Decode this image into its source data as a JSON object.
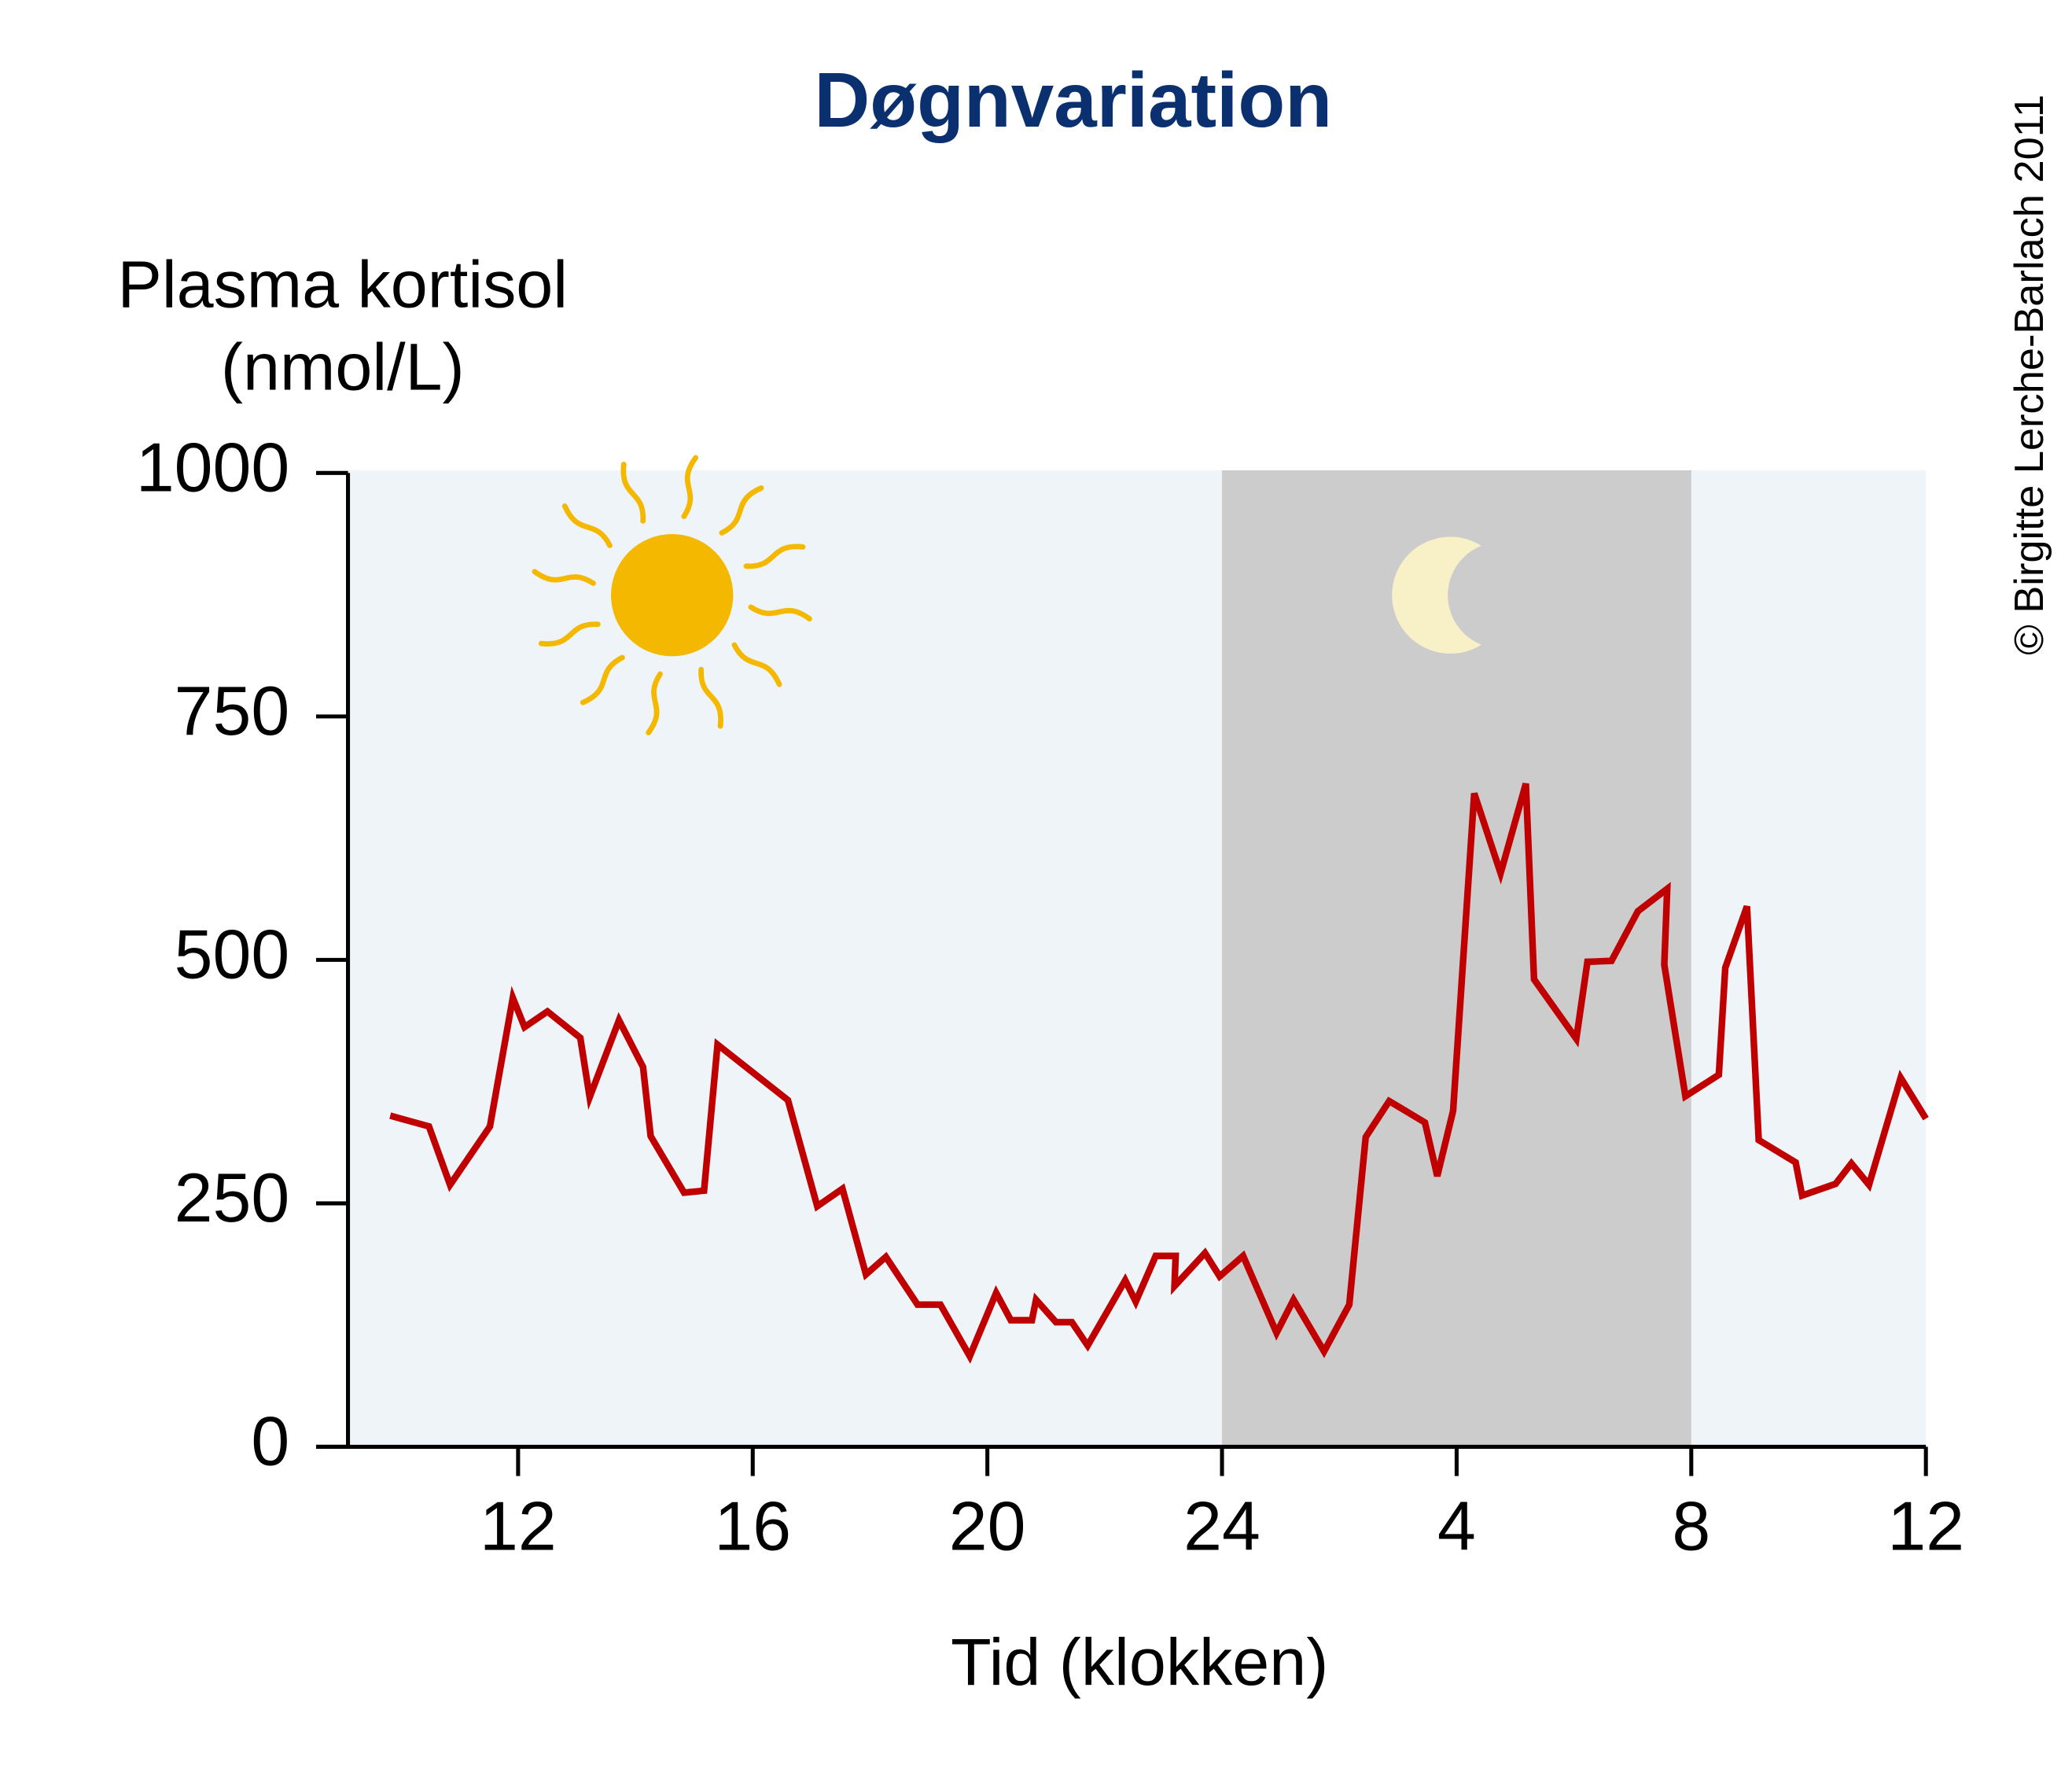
{
  "chart_data": {
    "type": "line",
    "title": "Døgnvariation",
    "ylabel": [
      "Plasma kortisol",
      "(nmol/L)"
    ],
    "xlabel": "Tid (klokken)",
    "copyright": "© Birgitte Lerche-Barlach 2011",
    "xlim": [
      9.1,
      36
    ],
    "ylim": [
      0,
      1000
    ],
    "xticks": [
      12,
      16,
      20,
      24,
      {
        "value": 28,
        "label": "4"
      },
      {
        "value": 32,
        "label": "8"
      },
      {
        "value": 36,
        "label": "12"
      }
    ],
    "yticks": [
      0,
      250,
      500,
      750,
      1000
    ],
    "shaded_region": [
      24,
      32
    ],
    "series": [
      {
        "color": "#c00000",
        "x": [
          9.82,
          10.48,
          10.84,
          11.52,
          11.91,
          12.11,
          12.5,
          13.06,
          13.22,
          13.72,
          14.13,
          14.26,
          14.83,
          15.17,
          15.4,
          16.6,
          17.1,
          17.53,
          17.93,
          18.27,
          18.81,
          19.2,
          19.7,
          20.15,
          20.4,
          20.76,
          20.83,
          21.17,
          21.44,
          21.71,
          22.35,
          22.53,
          22.87,
          23.21,
          23.19,
          23.71,
          23.96,
          24.36,
          24.93,
          25.22,
          25.74,
          26.17,
          26.45,
          26.85,
          27.46,
          27.67,
          27.94,
          28.3,
          28.75,
          29.18,
          29.32,
          30.04,
          30.23,
          30.64,
          31.09,
          31.59,
          31.54,
          31.9,
          32.47,
          32.58,
          32.95,
          33.15,
          33.78,
          33.89,
          34.46,
          34.73,
          35.03,
          35.57,
          36
        ],
        "values": [
          340,
          329,
          269,
          329,
          461,
          431,
          447,
          420,
          359,
          438,
          390,
          319,
          261,
          263,
          413,
          356,
          247,
          265,
          177,
          195,
          146,
          146,
          93,
          158,
          130,
          130,
          151,
          128,
          128,
          104,
          171,
          149,
          196,
          196,
          165,
          199,
          175,
          196,
          117,
          151,
          98,
          146,
          318,
          355,
          333,
          278,
          345,
          671,
          589,
          681,
          480,
          419,
          498,
          499,
          550,
          573,
          495,
          360,
          382,
          492,
          555,
          315,
          292,
          258,
          270,
          291,
          269,
          379,
          337
        ]
      }
    ]
  }
}
